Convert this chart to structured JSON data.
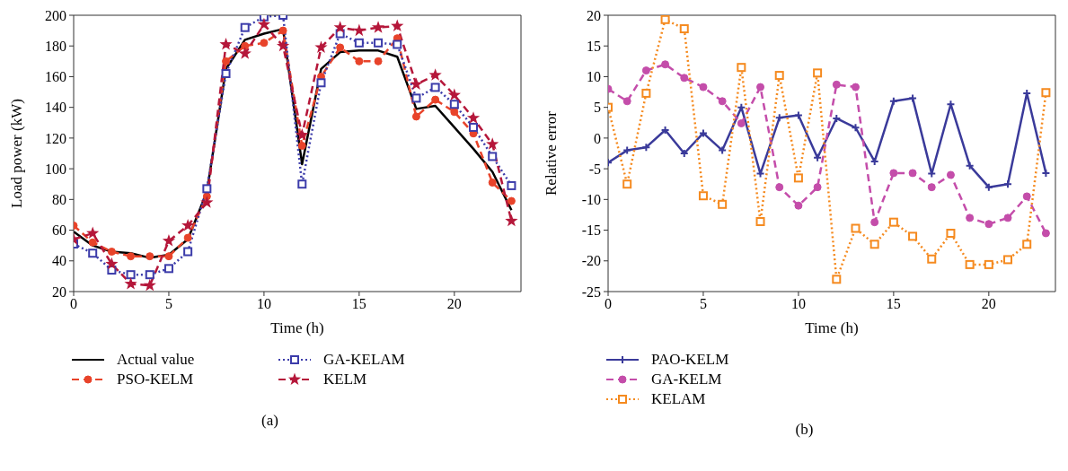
{
  "chart_data": [
    {
      "type": "line",
      "xlabel": "Time (h)",
      "ylabel": "Load power (kW)",
      "x": [
        0,
        1,
        2,
        3,
        4,
        5,
        6,
        7,
        8,
        9,
        10,
        11,
        12,
        13,
        14,
        15,
        16,
        17,
        18,
        19,
        20,
        21,
        22,
        23
      ],
      "xlim": [
        0,
        23.5
      ],
      "xticks": [
        0,
        5,
        10,
        15,
        20
      ],
      "ylim": [
        20,
        200
      ],
      "yticks": [
        20,
        40,
        60,
        80,
        100,
        120,
        140,
        160,
        180,
        200
      ],
      "grid": false,
      "legend": "bottom",
      "annotations": [
        "(a)"
      ],
      "series": [
        {
          "name": "Actual value",
          "color": "#000000",
          "marker": "none",
          "line_style": "solid",
          "values": [
            59,
            50,
            46,
            45,
            42,
            44,
            54,
            85,
            165,
            184,
            188,
            191,
            103,
            165,
            176,
            177,
            177,
            173,
            139,
            141,
            127,
            113,
            98,
            73
          ]
        },
        {
          "name": "PSO-KELM",
          "color": "#e8432a",
          "marker": "circle",
          "line_style": "dashed",
          "values": [
            63,
            52,
            46,
            43,
            43,
            43,
            55,
            82,
            170,
            180,
            182,
            190,
            115,
            160,
            179,
            170,
            170,
            185,
            134,
            145,
            137,
            123,
            91,
            79
          ]
        },
        {
          "name": "GA-KELAM",
          "color": "#3c3caa",
          "marker": "square",
          "line_style": "dotted",
          "values": [
            51,
            45,
            34,
            31,
            31,
            35,
            46,
            87,
            162,
            192,
            199,
            200,
            90,
            156,
            188,
            182,
            182,
            181,
            146,
            153,
            142,
            127,
            108,
            89
          ]
        },
        {
          "name": "KELM",
          "color": "#b5173a",
          "marker": "star",
          "line_style": "dashed",
          "values": [
            54,
            58,
            38,
            25,
            24,
            53,
            63,
            78,
            181,
            175,
            194,
            180,
            122,
            179,
            192,
            190,
            192,
            193,
            155,
            161,
            148,
            133,
            116,
            66
          ]
        }
      ]
    },
    {
      "type": "line",
      "xlabel": "Time (h)",
      "ylabel": "Relative error",
      "x": [
        0,
        1,
        2,
        3,
        4,
        5,
        6,
        7,
        8,
        9,
        10,
        11,
        12,
        13,
        14,
        15,
        16,
        17,
        18,
        19,
        20,
        21,
        22,
        23
      ],
      "xlim": [
        0,
        23.5
      ],
      "xticks": [
        0,
        5,
        10,
        15,
        20
      ],
      "ylim": [
        -25,
        20
      ],
      "yticks": [
        -25,
        -20,
        -15,
        -10,
        -5,
        0,
        5,
        10,
        15,
        20
      ],
      "grid": false,
      "legend": "bottom",
      "annotations": [
        "(b)"
      ],
      "series": [
        {
          "name": "PAO-KELM",
          "color": "#3a3a9a",
          "marker": "cross",
          "line_style": "solid",
          "values": [
            -4,
            -2,
            -1.5,
            1.3,
            -2.5,
            0.8,
            -2,
            5,
            -5.8,
            3.3,
            3.7,
            -3.2,
            3.2,
            1.7,
            -3.8,
            6,
            6.5,
            -5.8,
            5.5,
            -4.5,
            -8,
            -7.5,
            7.3,
            -5.7
          ]
        },
        {
          "name": "GA-KELM",
          "color": "#c44daa",
          "marker": "circle",
          "line_style": "dashed",
          "values": [
            8,
            6,
            11,
            12,
            9.8,
            8.3,
            6,
            2.4,
            8.3,
            -8,
            -11,
            -8,
            8.7,
            8.3,
            -13.7,
            -5.7,
            -5.7,
            -8,
            -6,
            -13,
            -14,
            -13,
            -9.5,
            -15.5
          ]
        },
        {
          "name": "KELAM",
          "color": "#f58a1f",
          "marker": "square",
          "line_style": "dotted",
          "values": [
            5,
            -7.5,
            7.3,
            19.3,
            17.8,
            -9.4,
            -10.8,
            11.5,
            -13.6,
            10.2,
            -6.5,
            10.6,
            -23,
            -14.7,
            -17.3,
            -13.7,
            -16,
            -19.7,
            -15.5,
            -20.6,
            -20.6,
            -19.8,
            -17.3,
            7.4
          ]
        }
      ]
    }
  ]
}
